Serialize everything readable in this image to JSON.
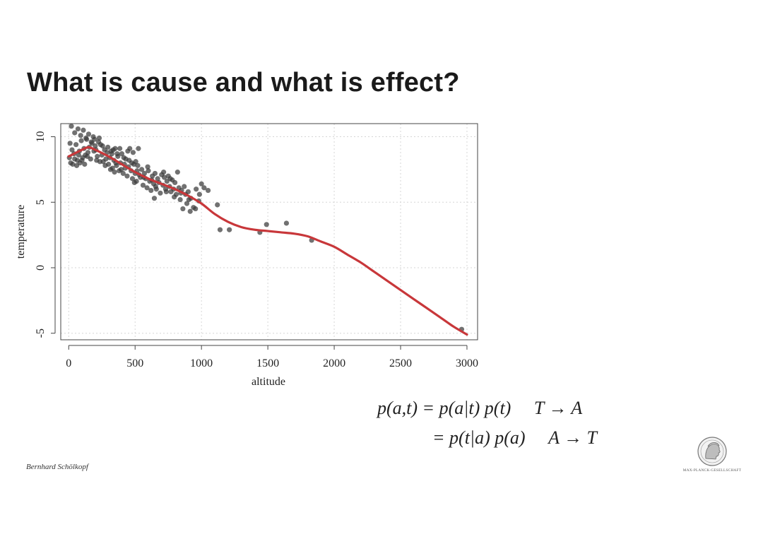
{
  "slide": {
    "title": "What is cause and what is effect?",
    "author": "Bernhard Schölkopf",
    "formula_line1": {
      "lhs": "p(a,t)",
      "rhs": "= p(a|t) p(t)",
      "direction": "T → A"
    },
    "formula_line2": {
      "rhs": "= p(t|a) p(a)",
      "direction": "A → T"
    },
    "logo": {
      "text": "MAX-PLANCK-GESELLSCHAFT",
      "icon": "minerva-head-icon"
    }
  },
  "colors": {
    "points": "#3a3a3a",
    "fit_line": "#c8373a",
    "grid": "#d6d6d6"
  },
  "chart_data": {
    "type": "scatter",
    "xlabel": "altitude",
    "ylabel": "temperature",
    "xlim": [
      -60,
      3080
    ],
    "ylim": [
      -5.5,
      11
    ],
    "xticks": [
      0,
      500,
      1000,
      1500,
      2000,
      2500,
      3000
    ],
    "yticks": [
      -5,
      0,
      5,
      10
    ],
    "grid": true,
    "points": [
      [
        20,
        10.8
      ],
      [
        45,
        10.3
      ],
      [
        70,
        10.6
      ],
      [
        90,
        10.1
      ],
      [
        110,
        10.5
      ],
      [
        130,
        9.9
      ],
      [
        150,
        10.2
      ],
      [
        170,
        9.6
      ],
      [
        185,
        10.0
      ],
      [
        200,
        9.3
      ],
      [
        10,
        9.5
      ],
      [
        25,
        9.0
      ],
      [
        40,
        8.7
      ],
      [
        55,
        9.4
      ],
      [
        65,
        8.2
      ],
      [
        80,
        8.9
      ],
      [
        95,
        9.7
      ],
      [
        105,
        8.4
      ],
      [
        115,
        9.1
      ],
      [
        125,
        8.6
      ],
      [
        135,
        9.8
      ],
      [
        145,
        8.8
      ],
      [
        155,
        9.2
      ],
      [
        165,
        8.3
      ],
      [
        175,
        9.5
      ],
      [
        190,
        8.9
      ],
      [
        205,
        9.0
      ],
      [
        215,
        8.5
      ],
      [
        225,
        9.6
      ],
      [
        235,
        8.1
      ],
      [
        5,
        8.4
      ],
      [
        15,
        8.0
      ],
      [
        30,
        7.9
      ],
      [
        45,
        8.3
      ],
      [
        60,
        7.8
      ],
      [
        75,
        8.6
      ],
      [
        85,
        8.0
      ],
      [
        100,
        8.2
      ],
      [
        120,
        7.9
      ],
      [
        140,
        8.5
      ],
      [
        240,
        9.4
      ],
      [
        250,
        8.6
      ],
      [
        260,
        8.1
      ],
      [
        270,
        9.0
      ],
      [
        280,
        8.3
      ],
      [
        290,
        8.8
      ],
      [
        300,
        7.9
      ],
      [
        310,
        8.4
      ],
      [
        320,
        8.9
      ],
      [
        330,
        7.6
      ],
      [
        340,
        8.2
      ],
      [
        350,
        9.1
      ],
      [
        360,
        7.8
      ],
      [
        370,
        8.5
      ],
      [
        380,
        7.4
      ],
      [
        390,
        8.0
      ],
      [
        400,
        8.7
      ],
      [
        410,
        7.2
      ],
      [
        420,
        7.9
      ],
      [
        430,
        8.3
      ],
      [
        440,
        7.0
      ],
      [
        450,
        7.7
      ],
      [
        460,
        9.1
      ],
      [
        470,
        7.4
      ],
      [
        480,
        6.8
      ],
      [
        490,
        7.9
      ],
      [
        500,
        7.2
      ],
      [
        510,
        6.6
      ],
      [
        520,
        7.8
      ],
      [
        530,
        7.1
      ],
      [
        540,
        6.9
      ],
      [
        550,
        7.5
      ],
      [
        560,
        6.3
      ],
      [
        570,
        7.2
      ],
      [
        580,
        6.8
      ],
      [
        590,
        6.1
      ],
      [
        600,
        7.4
      ],
      [
        610,
        6.6
      ],
      [
        620,
        5.9
      ],
      [
        630,
        7.0
      ],
      [
        640,
        6.4
      ],
      [
        650,
        7.2
      ],
      [
        660,
        6.0
      ],
      [
        670,
        6.8
      ],
      [
        680,
        6.5
      ],
      [
        690,
        5.7
      ],
      [
        700,
        7.1
      ],
      [
        710,
        6.3
      ],
      [
        720,
        6.9
      ],
      [
        730,
        6.0
      ],
      [
        740,
        6.6
      ],
      [
        750,
        7.0
      ],
      [
        760,
        6.2
      ],
      [
        770,
        5.8
      ],
      [
        780,
        6.7
      ],
      [
        790,
        6.0
      ],
      [
        800,
        6.5
      ],
      [
        810,
        5.6
      ],
      [
        820,
        7.3
      ],
      [
        830,
        6.1
      ],
      [
        840,
        5.2
      ],
      [
        850,
        5.9
      ],
      [
        860,
        4.5
      ],
      [
        870,
        6.2
      ],
      [
        880,
        5.6
      ],
      [
        890,
        4.9
      ],
      [
        900,
        5.8
      ],
      [
        920,
        5.3
      ],
      [
        940,
        4.6
      ],
      [
        960,
        6.0
      ],
      [
        980,
        5.1
      ],
      [
        1000,
        6.4
      ],
      [
        1020,
        6.1
      ],
      [
        1050,
        5.9
      ],
      [
        1120,
        4.8
      ],
      [
        1140,
        2.9
      ],
      [
        1210,
        2.9
      ],
      [
        1440,
        2.7
      ],
      [
        1490,
        3.3
      ],
      [
        1640,
        3.4
      ],
      [
        1830,
        2.1
      ],
      [
        2960,
        -4.7
      ],
      [
        345,
        7.3
      ],
      [
        365,
        8.7
      ],
      [
        385,
        9.1
      ],
      [
        425,
        7.6
      ],
      [
        455,
        8.2
      ],
      [
        485,
        8.8
      ],
      [
        505,
        8.1
      ],
      [
        525,
        9.1
      ],
      [
        565,
        6.9
      ],
      [
        595,
        7.7
      ],
      [
        625,
        6.7
      ],
      [
        645,
        5.3
      ],
      [
        655,
        6.2
      ],
      [
        715,
        7.3
      ],
      [
        735,
        5.8
      ],
      [
        765,
        6.8
      ],
      [
        795,
        5.4
      ],
      [
        845,
        5.7
      ],
      [
        905,
        5.2
      ],
      [
        915,
        4.3
      ],
      [
        955,
        4.5
      ],
      [
        985,
        5.6
      ],
      [
        195,
        9.8
      ],
      [
        210,
        8.2
      ],
      [
        230,
        9.9
      ],
      [
        255,
        9.3
      ],
      [
        275,
        7.8
      ],
      [
        295,
        9.2
      ],
      [
        315,
        7.5
      ],
      [
        325,
        8.7
      ],
      [
        335,
        9.0
      ],
      [
        355,
        8.0
      ],
      [
        395,
        7.5
      ],
      [
        415,
        8.4
      ],
      [
        445,
        8.9
      ],
      [
        475,
        8.0
      ],
      [
        495,
        6.5
      ],
      [
        515,
        7.4
      ]
    ],
    "fit_line": [
      [
        0,
        8.5
      ],
      [
        100,
        9.0
      ],
      [
        150,
        9.2
      ],
      [
        200,
        9.0
      ],
      [
        300,
        8.5
      ],
      [
        400,
        7.9
      ],
      [
        500,
        7.3
      ],
      [
        600,
        6.8
      ],
      [
        700,
        6.4
      ],
      [
        800,
        6.0
      ],
      [
        900,
        5.5
      ],
      [
        1000,
        4.9
      ],
      [
        1100,
        4.1
      ],
      [
        1200,
        3.5
      ],
      [
        1300,
        3.1
      ],
      [
        1400,
        2.9
      ],
      [
        1500,
        2.8
      ],
      [
        1600,
        2.7
      ],
      [
        1700,
        2.6
      ],
      [
        1800,
        2.4
      ],
      [
        1900,
        2.0
      ],
      [
        2000,
        1.6
      ],
      [
        2100,
        1.0
      ],
      [
        2200,
        0.4
      ],
      [
        2300,
        -0.3
      ],
      [
        2400,
        -1.0
      ],
      [
        2500,
        -1.7
      ],
      [
        2600,
        -2.4
      ],
      [
        2700,
        -3.1
      ],
      [
        2800,
        -3.8
      ],
      [
        2900,
        -4.5
      ],
      [
        3000,
        -5.1
      ]
    ]
  }
}
